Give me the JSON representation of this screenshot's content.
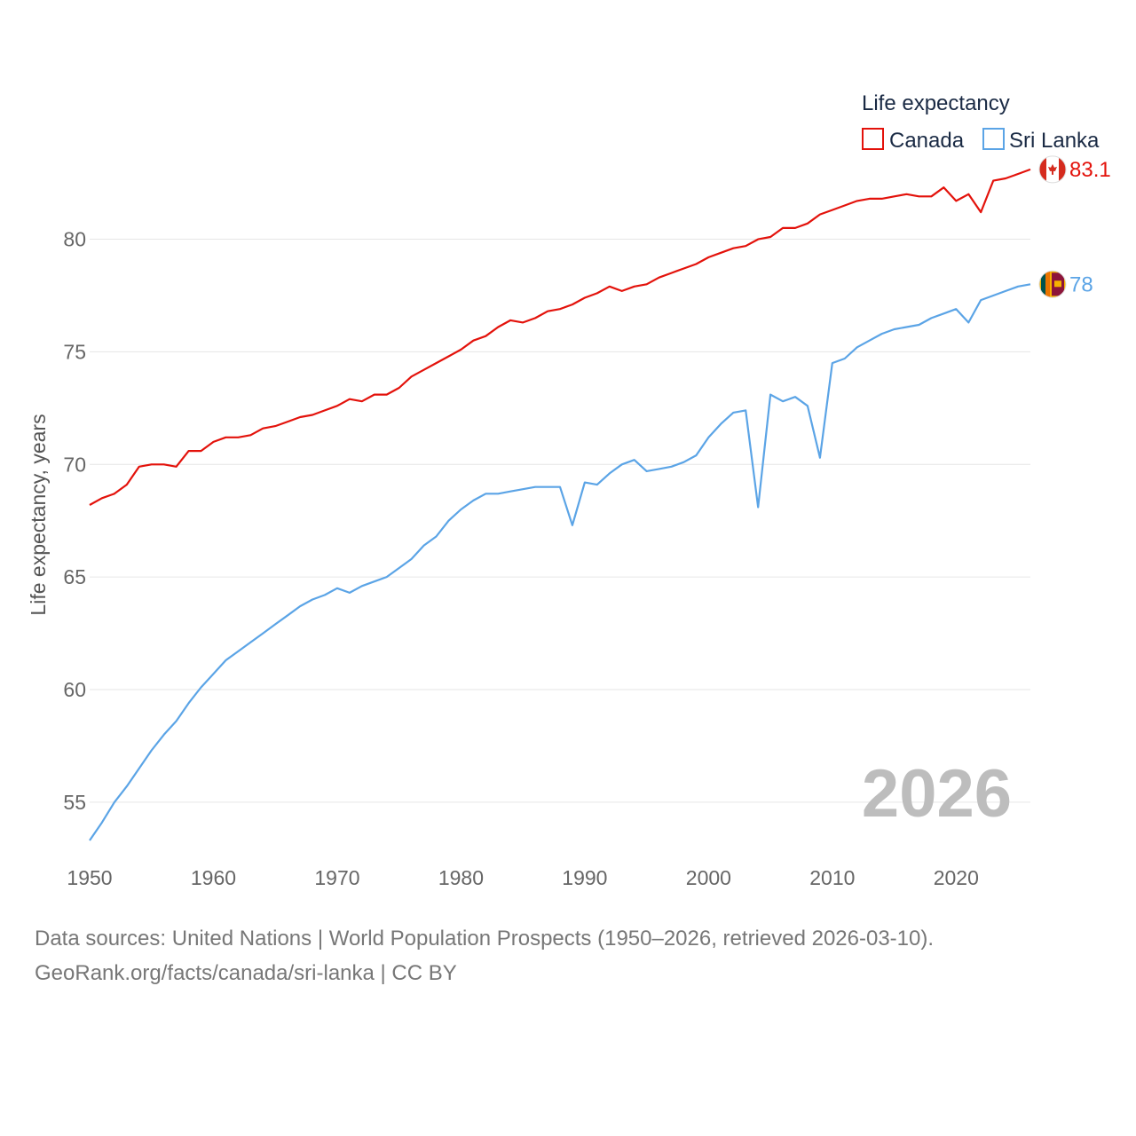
{
  "chart_data": {
    "type": "line",
    "legend_title": "Life expectancy",
    "ylabel": "Life expectancy, years",
    "xlabel": "",
    "xlim": [
      1950,
      2026
    ],
    "ylim": [
      52,
      85.5
    ],
    "x_ticks": [
      1950,
      1960,
      1970,
      1980,
      1990,
      2000,
      2010,
      2020
    ],
    "y_ticks": [
      55,
      60,
      65,
      70,
      75,
      80
    ],
    "gridlines": "horizontal",
    "legend_position": "top-right",
    "current_year_label": "2026",
    "x": [
      1950,
      1951,
      1952,
      1953,
      1954,
      1955,
      1956,
      1957,
      1958,
      1959,
      1960,
      1961,
      1962,
      1963,
      1964,
      1965,
      1966,
      1967,
      1968,
      1969,
      1970,
      1971,
      1972,
      1973,
      1974,
      1975,
      1976,
      1977,
      1978,
      1979,
      1980,
      1981,
      1982,
      1983,
      1984,
      1985,
      1986,
      1987,
      1988,
      1989,
      1990,
      1991,
      1992,
      1993,
      1994,
      1995,
      1996,
      1997,
      1998,
      1999,
      2000,
      2001,
      2002,
      2003,
      2004,
      2005,
      2006,
      2007,
      2008,
      2009,
      2010,
      2011,
      2012,
      2013,
      2014,
      2015,
      2016,
      2017,
      2018,
      2019,
      2020,
      2021,
      2022,
      2023,
      2024,
      2025,
      2026
    ],
    "series": [
      {
        "name": "Canada",
        "color": "#e3120b",
        "end_label": "83.1",
        "flag": "canada-flag",
        "values": [
          68.2,
          68.5,
          68.7,
          69.1,
          69.9,
          70.0,
          70.0,
          69.9,
          70.6,
          70.6,
          71.0,
          71.2,
          71.2,
          71.3,
          71.6,
          71.7,
          71.9,
          72.1,
          72.2,
          72.4,
          72.6,
          72.9,
          72.8,
          73.1,
          73.1,
          73.4,
          73.9,
          74.2,
          74.5,
          74.8,
          75.1,
          75.5,
          75.7,
          76.1,
          76.4,
          76.3,
          76.5,
          76.8,
          76.9,
          77.1,
          77.4,
          77.6,
          77.9,
          77.7,
          77.9,
          78.0,
          78.3,
          78.5,
          78.7,
          78.9,
          79.2,
          79.4,
          79.6,
          79.7,
          80.0,
          80.1,
          80.5,
          80.5,
          80.7,
          81.1,
          81.3,
          81.5,
          81.7,
          81.8,
          81.8,
          81.9,
          82.0,
          81.9,
          81.9,
          82.3,
          81.7,
          82.0,
          81.2,
          82.6,
          82.7,
          82.9,
          83.1
        ]
      },
      {
        "name": "Sri Lanka",
        "color": "#5ba4e6",
        "end_label": "78",
        "flag": "sri-lanka-flag",
        "values": [
          53.3,
          54.1,
          55.0,
          55.7,
          56.5,
          57.3,
          58.0,
          58.6,
          59.4,
          60.1,
          60.7,
          61.3,
          61.7,
          62.1,
          62.5,
          62.9,
          63.3,
          63.7,
          64.0,
          64.2,
          64.5,
          64.3,
          64.6,
          64.8,
          65.0,
          65.4,
          65.8,
          66.4,
          66.8,
          67.5,
          68.0,
          68.4,
          68.7,
          68.7,
          68.8,
          68.9,
          69.0,
          69.0,
          69.0,
          67.3,
          69.2,
          69.1,
          69.6,
          70.0,
          70.2,
          69.7,
          69.8,
          69.9,
          70.1,
          70.4,
          71.2,
          71.8,
          72.3,
          72.4,
          68.1,
          73.1,
          72.8,
          73.0,
          72.6,
          70.3,
          74.5,
          74.7,
          75.2,
          75.5,
          75.8,
          76.0,
          76.1,
          76.2,
          76.5,
          76.7,
          76.9,
          76.3,
          77.3,
          77.5,
          77.7,
          77.9,
          78.0
        ]
      }
    ]
  },
  "footer": {
    "sources": "Data sources: United Nations | World Population Prospects (1950–2026, retrieved 2026-03-10).",
    "credit": "GeoRank.org/facts/canada/sri-lanka | CC BY"
  }
}
